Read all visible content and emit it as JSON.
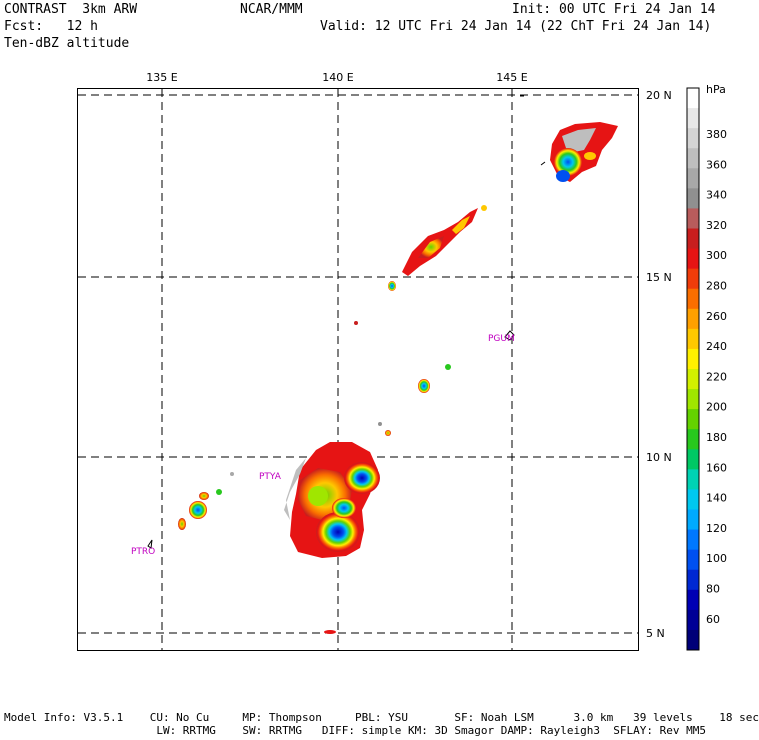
{
  "header": {
    "line1_left": "CONTRAST  3km ARW",
    "line1_center": "NCAR/MMM",
    "line1_right": "Init: 00 UTC Fri 24 Jan 14",
    "line2_left": "Fcst:   12 h",
    "line2_right": "Valid: 12 UTC Fri 24 Jan 14 (22 ChT Fri 24 Jan 14)",
    "line3_left": "Ten-dBZ altitude"
  },
  "map": {
    "lon_labels": [
      "135 E",
      "140 E",
      "145 E"
    ],
    "lat_labels": [
      "20 N",
      "15 N",
      "10 N",
      "5 N"
    ],
    "sites": [
      "PGUM",
      "PTYA",
      "PTRO"
    ]
  },
  "colorbar": {
    "unit": "hPa",
    "labels": [
      "380",
      "360",
      "340",
      "320",
      "300",
      "280",
      "260",
      "240",
      "220",
      "200",
      "180",
      "160",
      "140",
      "120",
      "100",
      "80",
      "60"
    ],
    "colors": [
      "#ffffff",
      "#e8e8e8",
      "#d4d4d4",
      "#bebebe",
      "#a8a8a8",
      "#909090",
      "#b85c5c",
      "#c81e1e",
      "#e61414",
      "#f03c0a",
      "#fa6e00",
      "#ffa000",
      "#ffc800",
      "#fff000",
      "#d2f000",
      "#a0e600",
      "#64d200",
      "#28c81e",
      "#00c864",
      "#00d2b4",
      "#00c8f0",
      "#00aaff",
      "#0078ff",
      "#0050f0",
      "#0028d2",
      "#0000b4",
      "#000096",
      "#000078"
    ]
  },
  "model_info": {
    "line1": "Model Info: V3.5.1    CU: No Cu     MP: Thompson     PBL: YSU       SF: Noah LSM      3.0 km   39 levels    18 sec",
    "line2": "                       LW: RRTMG    SW: RRTMG   DIFF: simple KM: 3D Smagor DAMP: Rayleigh3  SFLAY: Rev MM5"
  }
}
